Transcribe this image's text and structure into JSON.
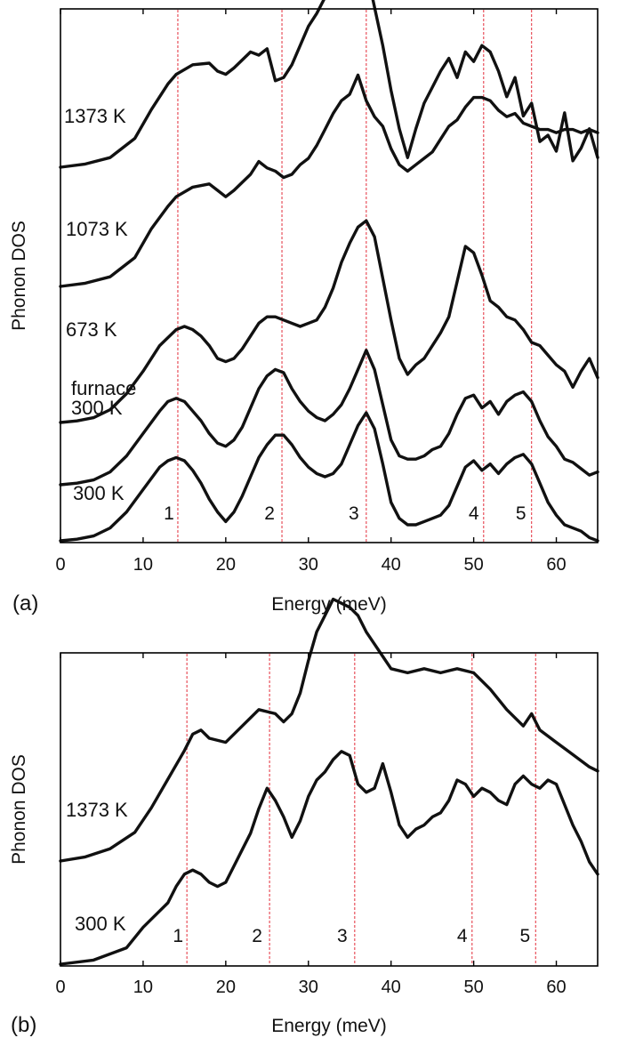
{
  "chart_data": [
    {
      "panel_label": "(a)",
      "type": "line",
      "xlabel": "Energy (meV)",
      "ylabel": "Phonon DOS",
      "xlim": [
        0,
        65
      ],
      "xticks": [
        0,
        10,
        20,
        30,
        40,
        50,
        60
      ],
      "y_ticks_shown": false,
      "peak_markers": [
        {
          "label": "1",
          "x": 14.2
        },
        {
          "label": "2",
          "x": 26.8
        },
        {
          "label": "3",
          "x": 37.0
        },
        {
          "label": "4",
          "x": 51.2
        },
        {
          "label": "5",
          "x": 57.0
        }
      ],
      "series": [
        {
          "name": "1373 K",
          "x": [
            0,
            3,
            6,
            9,
            11,
            13,
            14,
            16,
            18,
            19,
            20,
            21,
            23,
            24,
            25,
            26,
            27,
            28,
            29,
            30,
            31,
            32,
            33,
            34,
            35,
            36,
            37,
            38,
            39,
            40,
            41,
            42,
            43,
            44,
            45,
            46,
            47,
            48,
            49,
            50,
            51,
            52,
            53,
            54,
            55,
            56,
            57,
            58,
            59,
            60,
            61,
            62,
            63,
            64,
            65
          ],
          "y": [
            0,
            0.1,
            0.3,
            0.9,
            1.8,
            2.6,
            2.9,
            3.2,
            3.25,
            3.0,
            2.9,
            3.1,
            3.6,
            3.5,
            3.7,
            2.7,
            2.8,
            3.2,
            3.8,
            4.4,
            4.8,
            5.3,
            6.0,
            6.6,
            6.7,
            6.6,
            6.2,
            5.0,
            3.8,
            2.4,
            1.2,
            0.3,
            1.2,
            2.0,
            2.5,
            3.0,
            3.4,
            2.8,
            3.6,
            3.3,
            3.8,
            3.6,
            3.0,
            2.2,
            2.8,
            1.6,
            2.0,
            0.8,
            1.0,
            0.5,
            1.7,
            0.2,
            0.6,
            1.2,
            0.3
          ]
        },
        {
          "name": "1073 K",
          "x": [
            0,
            3,
            6,
            9,
            11,
            13,
            14,
            16,
            18,
            19,
            20,
            21,
            23,
            24,
            25,
            26,
            27,
            28,
            29,
            30,
            31,
            32,
            33,
            34,
            35,
            36,
            37,
            38,
            39,
            40,
            41,
            42,
            43,
            44,
            45,
            46,
            47,
            48,
            49,
            50,
            51,
            52,
            53,
            54,
            55,
            56,
            57,
            58,
            59,
            60,
            61,
            62,
            63,
            64,
            65
          ],
          "y": [
            0,
            0.1,
            0.3,
            0.9,
            1.8,
            2.5,
            2.8,
            3.1,
            3.2,
            3.0,
            2.8,
            3.0,
            3.5,
            3.9,
            3.7,
            3.6,
            3.4,
            3.5,
            3.8,
            4.0,
            4.4,
            4.9,
            5.4,
            5.8,
            6.0,
            6.6,
            5.8,
            5.3,
            5.0,
            4.3,
            3.8,
            3.6,
            3.8,
            4.0,
            4.2,
            4.6,
            5.0,
            5.2,
            5.6,
            5.9,
            5.9,
            5.8,
            5.5,
            5.3,
            5.4,
            5.1,
            5.0,
            4.9,
            4.9,
            4.8,
            4.9,
            4.9,
            4.8,
            4.9,
            4.8
          ]
        },
        {
          "name": "673 K",
          "x": [
            0,
            2,
            4,
            6,
            8,
            10,
            12,
            14,
            15,
            16,
            17,
            18,
            19,
            20,
            21,
            22,
            23,
            24,
            25,
            26,
            27,
            28,
            29,
            30,
            31,
            32,
            33,
            34,
            35,
            36,
            37,
            38,
            39,
            40,
            41,
            42,
            43,
            44,
            45,
            46,
            47,
            48,
            49,
            50,
            51,
            52,
            53,
            54,
            55,
            56,
            57,
            58,
            59,
            60,
            61,
            62,
            63,
            64,
            65
          ],
          "y": [
            0,
            0.05,
            0.15,
            0.4,
            0.9,
            1.6,
            2.4,
            2.9,
            3.0,
            2.9,
            2.7,
            2.4,
            2.0,
            1.9,
            2.0,
            2.3,
            2.7,
            3.1,
            3.3,
            3.3,
            3.2,
            3.1,
            3.0,
            3.1,
            3.2,
            3.6,
            4.2,
            5.0,
            5.6,
            6.1,
            6.3,
            5.8,
            4.5,
            3.2,
            2.0,
            1.5,
            1.8,
            2.0,
            2.4,
            2.8,
            3.3,
            4.4,
            5.5,
            5.3,
            4.6,
            3.8,
            3.6,
            3.3,
            3.2,
            2.9,
            2.5,
            2.4,
            2.1,
            1.8,
            1.6,
            1.1,
            1.6,
            2.0,
            1.4
          ]
        },
        {
          "name": "furnace 300 K",
          "x": [
            0,
            2,
            4,
            6,
            8,
            10,
            12,
            13,
            14,
            15,
            16,
            17,
            18,
            19,
            20,
            21,
            22,
            23,
            24,
            25,
            26,
            27,
            28,
            29,
            30,
            31,
            32,
            33,
            34,
            35,
            36,
            37,
            38,
            39,
            40,
            41,
            42,
            43,
            44,
            45,
            46,
            47,
            48,
            49,
            50,
            51,
            52,
            53,
            54,
            55,
            56,
            57,
            58,
            59,
            60,
            61,
            62,
            63,
            64,
            65
          ],
          "y": [
            0,
            0.05,
            0.15,
            0.4,
            0.9,
            1.6,
            2.3,
            2.6,
            2.7,
            2.6,
            2.3,
            2.0,
            1.6,
            1.3,
            1.2,
            1.4,
            1.8,
            2.4,
            3.0,
            3.4,
            3.6,
            3.5,
            3.0,
            2.6,
            2.3,
            2.1,
            2.0,
            2.2,
            2.5,
            3.0,
            3.6,
            4.2,
            3.6,
            2.5,
            1.4,
            0.9,
            0.8,
            0.8,
            0.9,
            1.1,
            1.2,
            1.6,
            2.2,
            2.7,
            2.8,
            2.4,
            2.6,
            2.2,
            2.6,
            2.8,
            2.9,
            2.6,
            2.0,
            1.5,
            1.2,
            0.8,
            0.7,
            0.5,
            0.3,
            0.4
          ]
        },
        {
          "name": "300 K",
          "x": [
            0,
            2,
            4,
            6,
            8,
            10,
            12,
            13,
            14,
            15,
            16,
            17,
            18,
            19,
            20,
            21,
            22,
            23,
            24,
            25,
            26,
            27,
            28,
            29,
            30,
            31,
            32,
            33,
            34,
            35,
            36,
            37,
            38,
            39,
            40,
            41,
            42,
            43,
            44,
            45,
            46,
            47,
            48,
            49,
            50,
            51,
            52,
            53,
            54,
            55,
            56,
            57,
            58,
            59,
            60,
            61,
            62,
            63,
            64,
            65
          ],
          "y": [
            0,
            0.05,
            0.15,
            0.4,
            0.9,
            1.6,
            2.3,
            2.5,
            2.6,
            2.5,
            2.2,
            1.8,
            1.3,
            0.9,
            0.6,
            0.9,
            1.4,
            2.0,
            2.6,
            3.0,
            3.3,
            3.3,
            3.0,
            2.6,
            2.3,
            2.1,
            2.0,
            2.1,
            2.4,
            3.0,
            3.6,
            4.0,
            3.5,
            2.4,
            1.2,
            0.7,
            0.5,
            0.5,
            0.6,
            0.7,
            0.8,
            1.1,
            1.7,
            2.3,
            2.5,
            2.2,
            2.4,
            2.1,
            2.4,
            2.6,
            2.7,
            2.4,
            1.8,
            1.2,
            0.8,
            0.5,
            0.4,
            0.3,
            0.1,
            0.0
          ]
        }
      ]
    },
    {
      "panel_label": "(b)",
      "type": "line",
      "xlabel": "Energy (meV)",
      "ylabel": "Phonon DOS",
      "xlim": [
        0,
        65
      ],
      "xticks": [
        0,
        10,
        20,
        30,
        40,
        50,
        60
      ],
      "y_ticks_shown": false,
      "peak_markers": [
        {
          "label": "1",
          "x": 15.3
        },
        {
          "label": "2",
          "x": 25.3
        },
        {
          "label": "3",
          "x": 35.6
        },
        {
          "label": "4",
          "x": 49.8
        },
        {
          "label": "5",
          "x": 57.5
        }
      ],
      "series": [
        {
          "name": "1373 K",
          "x": [
            0,
            3,
            6,
            9,
            11,
            13,
            15,
            16,
            17,
            18,
            20,
            22,
            24,
            26,
            27,
            28,
            29,
            30,
            31,
            32,
            33,
            34,
            35,
            36,
            37,
            38,
            39,
            40,
            42,
            44,
            46,
            48,
            50,
            52,
            54,
            56,
            57,
            58,
            60,
            62,
            64,
            65
          ],
          "y": [
            0,
            0.1,
            0.3,
            0.7,
            1.3,
            2.0,
            2.7,
            3.1,
            3.2,
            3.0,
            2.9,
            3.3,
            3.7,
            3.6,
            3.4,
            3.6,
            4.1,
            4.9,
            5.6,
            6.0,
            6.4,
            6.3,
            6.2,
            6.0,
            5.6,
            5.3,
            5.0,
            4.7,
            4.6,
            4.7,
            4.6,
            4.7,
            4.6,
            4.2,
            3.7,
            3.3,
            3.6,
            3.2,
            2.9,
            2.6,
            2.3,
            2.2
          ]
        },
        {
          "name": "300 K",
          "x": [
            0,
            4,
            8,
            10,
            12,
            13,
            14,
            15,
            16,
            17,
            18,
            19,
            20,
            21,
            22,
            23,
            24,
            25,
            26,
            27,
            28,
            29,
            30,
            31,
            32,
            33,
            34,
            35,
            36,
            37,
            38,
            39,
            40,
            41,
            42,
            43,
            44,
            45,
            46,
            47,
            48,
            49,
            50,
            51,
            52,
            53,
            54,
            55,
            56,
            57,
            58,
            59,
            60,
            61,
            62,
            63,
            64,
            65
          ],
          "y": [
            0,
            0.1,
            0.4,
            0.9,
            1.3,
            1.5,
            1.9,
            2.2,
            2.3,
            2.2,
            2.0,
            1.9,
            2.0,
            2.4,
            2.8,
            3.2,
            3.8,
            4.3,
            4.0,
            3.6,
            3.1,
            3.5,
            4.1,
            4.5,
            4.7,
            5.0,
            5.2,
            5.1,
            4.4,
            4.2,
            4.3,
            4.9,
            4.2,
            3.4,
            3.1,
            3.3,
            3.4,
            3.6,
            3.7,
            4.0,
            4.5,
            4.4,
            4.1,
            4.3,
            4.2,
            4.0,
            3.9,
            4.4,
            4.6,
            4.4,
            4.3,
            4.5,
            4.4,
            3.9,
            3.4,
            3.0,
            2.5,
            2.2
          ]
        }
      ]
    }
  ]
}
